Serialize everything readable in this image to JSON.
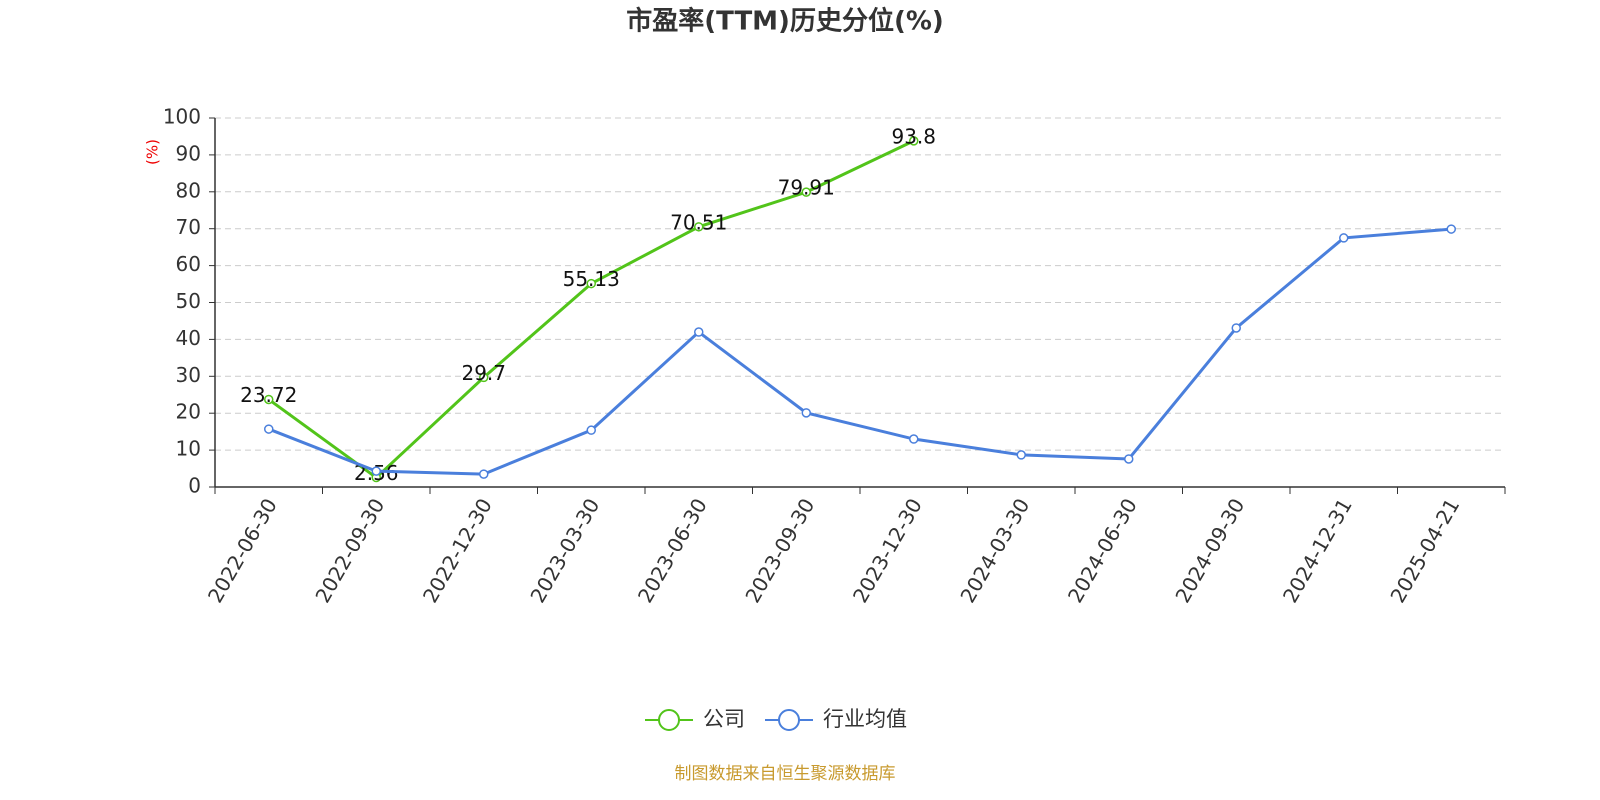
{
  "chart_data": {
    "type": "line",
    "title": "市盈率(TTM)历史分位(%)",
    "y_label": "(%)",
    "categories": [
      "2022-06-30",
      "2022-09-30",
      "2022-12-30",
      "2023-03-30",
      "2023-06-30",
      "2023-09-30",
      "2023-12-30",
      "2024-03-30",
      "2024-06-30",
      "2024-09-30",
      "2024-12-31",
      "2025-04-21"
    ],
    "series": [
      {
        "name": "公司",
        "color": "#52c41a",
        "values": [
          23.72,
          2.56,
          29.7,
          55.13,
          70.51,
          79.91,
          93.8,
          null,
          null,
          null,
          null,
          null
        ],
        "show_labels": true
      },
      {
        "name": "行业均值",
        "color": "#4a7fdc",
        "values": [
          15.7,
          4.3,
          3.5,
          15.4,
          42.0,
          20.1,
          13.0,
          8.7,
          7.6,
          43.1,
          67.5,
          69.9
        ],
        "show_labels": false
      }
    ],
    "ylim": [
      0,
      100
    ],
    "yticks": [
      0,
      10,
      20,
      30,
      40,
      50,
      60,
      70,
      80,
      90,
      100
    ],
    "grid": true,
    "legend": "bottom",
    "source": "制图数据来自恒生聚源数据库"
  }
}
